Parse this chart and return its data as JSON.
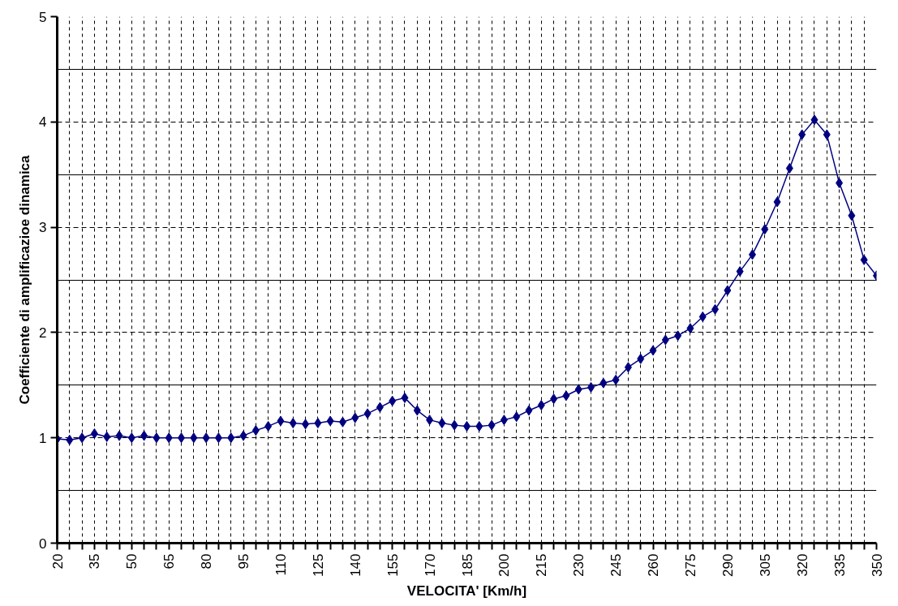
{
  "chart_data": {
    "type": "line",
    "xlabel": "VELOCITA' [Km/h]",
    "ylabel": "Coefficiente di amplificazioe dinamica",
    "x": [
      20,
      25,
      30,
      35,
      40,
      45,
      50,
      55,
      60,
      65,
      70,
      75,
      80,
      85,
      90,
      95,
      100,
      105,
      110,
      115,
      120,
      125,
      130,
      135,
      140,
      145,
      150,
      155,
      160,
      165,
      170,
      175,
      180,
      185,
      190,
      195,
      200,
      205,
      210,
      215,
      220,
      225,
      230,
      235,
      240,
      245,
      250,
      255,
      260,
      265,
      270,
      275,
      280,
      285,
      290,
      295,
      300,
      305,
      310,
      315,
      320,
      325,
      330,
      335,
      340,
      345,
      350
    ],
    "series": [
      {
        "color": "#000080",
        "values": [
          0.99,
          0.98,
          1.0,
          1.04,
          1.01,
          1.02,
          1.0,
          1.02,
          1.0,
          1.0,
          1.0,
          1.0,
          1.0,
          1.0,
          1.0,
          1.02,
          1.07,
          1.11,
          1.16,
          1.14,
          1.13,
          1.14,
          1.16,
          1.15,
          1.19,
          1.23,
          1.29,
          1.35,
          1.38,
          1.26,
          1.17,
          1.14,
          1.12,
          1.11,
          1.11,
          1.12,
          1.17,
          1.2,
          1.26,
          1.31,
          1.37,
          1.4,
          1.46,
          1.48,
          1.52,
          1.55,
          1.67,
          1.75,
          1.83,
          1.93,
          1.97,
          2.04,
          2.15,
          2.22,
          2.4,
          2.58,
          2.74,
          2.98,
          3.24,
          3.56,
          3.88,
          4.02,
          3.88,
          3.42,
          3.11,
          2.69,
          2.54
        ]
      }
    ],
    "xlim": [
      20,
      350
    ],
    "xticks": [
      20,
      {
        "value": 25,
        "label": null
      },
      {
        "value": 30,
        "label": null
      },
      35,
      {
        "value": 40,
        "label": null
      },
      {
        "value": 45,
        "label": null
      },
      50,
      {
        "value": 55,
        "label": null
      },
      {
        "value": 60,
        "label": null
      },
      65,
      {
        "value": 70,
        "label": null
      },
      {
        "value": 75,
        "label": null
      },
      80,
      {
        "value": 85,
        "label": null
      },
      {
        "value": 90,
        "label": null
      },
      95,
      {
        "value": 100,
        "label": null
      },
      {
        "value": 105,
        "label": null
      },
      110,
      {
        "value": 115,
        "label": null
      },
      {
        "value": 120,
        "label": null
      },
      125,
      {
        "value": 130,
        "label": null
      },
      {
        "value": 135,
        "label": null
      },
      140,
      {
        "value": 145,
        "label": null
      },
      {
        "value": 150,
        "label": null
      },
      155,
      {
        "value": 160,
        "label": null
      },
      {
        "value": 165,
        "label": null
      },
      170,
      {
        "value": 175,
        "label": null
      },
      {
        "value": 180,
        "label": null
      },
      185,
      {
        "value": 190,
        "label": null
      },
      {
        "value": 195,
        "label": null
      },
      200,
      {
        "value": 205,
        "label": null
      },
      {
        "value": 210,
        "label": null
      },
      215,
      {
        "value": 220,
        "label": null
      },
      {
        "value": 225,
        "label": null
      },
      230,
      {
        "value": 235,
        "label": null
      },
      {
        "value": 240,
        "label": null
      },
      245,
      {
        "value": 250,
        "label": null
      },
      {
        "value": 255,
        "label": null
      },
      260,
      {
        "value": 265,
        "label": null
      },
      {
        "value": 270,
        "label": null
      },
      275,
      {
        "value": 280,
        "label": null
      },
      {
        "value": 285,
        "label": null
      },
      290,
      {
        "value": 295,
        "label": null
      },
      {
        "value": 300,
        "label": null
      },
      305,
      {
        "value": 310,
        "label": null
      },
      {
        "value": 315,
        "label": null
      },
      320,
      {
        "value": 325,
        "label": null
      },
      {
        "value": 330,
        "label": null
      },
      335,
      {
        "value": 340,
        "label": null
      },
      {
        "value": 345,
        "label": null
      },
      350
    ],
    "ylim": [
      0,
      5
    ],
    "yticks": [
      0,
      {
        "value": 0.5,
        "label": null
      },
      1,
      {
        "value": 1.5,
        "label": null
      },
      2,
      {
        "value": 2.5,
        "label": null
      },
      3,
      {
        "value": 3.5,
        "label": null
      },
      4,
      {
        "value": 4.5,
        "label": null
      },
      5
    ],
    "grid": true,
    "marker": "diamond",
    "line_style": "solid"
  }
}
